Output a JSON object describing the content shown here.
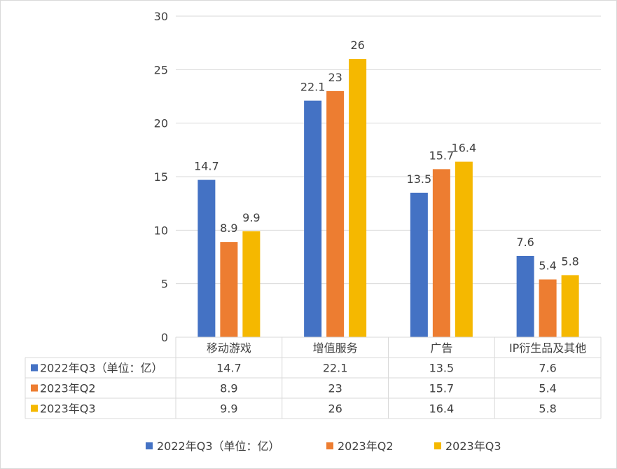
{
  "chart_data": {
    "type": "bar",
    "title": "",
    "xlabel": "",
    "ylabel": "",
    "ylim": [
      0,
      30
    ],
    "yticks": [
      0,
      5,
      10,
      15,
      20,
      25,
      30
    ],
    "grid": true,
    "legend_position": "bottom",
    "data_table": true,
    "categories": [
      "移动游戏",
      "增值服务",
      "广告",
      "IP衍生品及其他"
    ],
    "series": [
      {
        "name": "2022年Q3（单位：亿）",
        "color": "#4472C4",
        "values": [
          14.7,
          22.1,
          13.5,
          7.6
        ],
        "labels": [
          "14.7",
          "22.1",
          "13.5",
          "7.6"
        ]
      },
      {
        "name": "2023年Q2",
        "color": "#ED7D31",
        "values": [
          8.9,
          23,
          15.7,
          5.4
        ],
        "labels": [
          "8.9",
          "23",
          "15.7",
          "5.4"
        ]
      },
      {
        "name": "2023年Q3",
        "color": "#F5B800",
        "values": [
          9.9,
          26,
          16.4,
          5.8
        ],
        "labels": [
          "9.9",
          "26",
          "16.4",
          "5.8"
        ]
      }
    ]
  }
}
